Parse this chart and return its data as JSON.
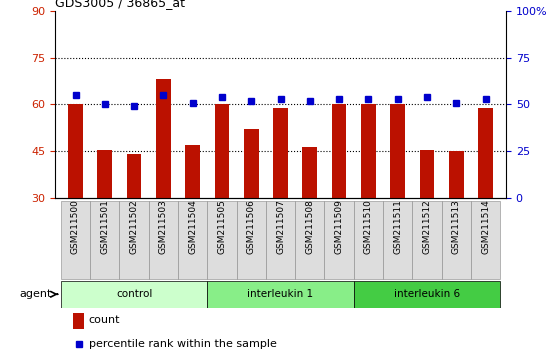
{
  "title": "GDS3005 / 36865_at",
  "samples": [
    "GSM211500",
    "GSM211501",
    "GSM211502",
    "GSM211503",
    "GSM211504",
    "GSM211505",
    "GSM211506",
    "GSM211507",
    "GSM211508",
    "GSM211509",
    "GSM211510",
    "GSM211511",
    "GSM211512",
    "GSM211513",
    "GSM211514"
  ],
  "bar_values": [
    60,
    45.5,
    44,
    68,
    47,
    60,
    52,
    59,
    46.5,
    60,
    60,
    60,
    45.5,
    45,
    59
  ],
  "dot_values": [
    55,
    50,
    49,
    55,
    51,
    54,
    52,
    53,
    52,
    53,
    53,
    53,
    54,
    51,
    53
  ],
  "bar_color": "#bb1100",
  "dot_color": "#0000cc",
  "ylim_left": [
    30,
    90
  ],
  "ylim_right": [
    0,
    100
  ],
  "yticks_left": [
    30,
    45,
    60,
    75,
    90
  ],
  "yticks_right": [
    0,
    25,
    50,
    75,
    100
  ],
  "grid_lines": [
    45,
    60,
    75
  ],
  "groups": [
    {
      "label": "control",
      "start": 0,
      "end": 4,
      "color": "#ccffcc"
    },
    {
      "label": "interleukin 1",
      "start": 5,
      "end": 9,
      "color": "#88ee88"
    },
    {
      "label": "interleukin 6",
      "start": 10,
      "end": 14,
      "color": "#44cc44"
    }
  ],
  "agent_label": "agent",
  "legend_bar_label": "count",
  "legend_dot_label": "percentile rank within the sample",
  "tick_label_color_left": "#cc2200",
  "tick_label_color_right": "#0000cc",
  "bar_width": 0.5
}
